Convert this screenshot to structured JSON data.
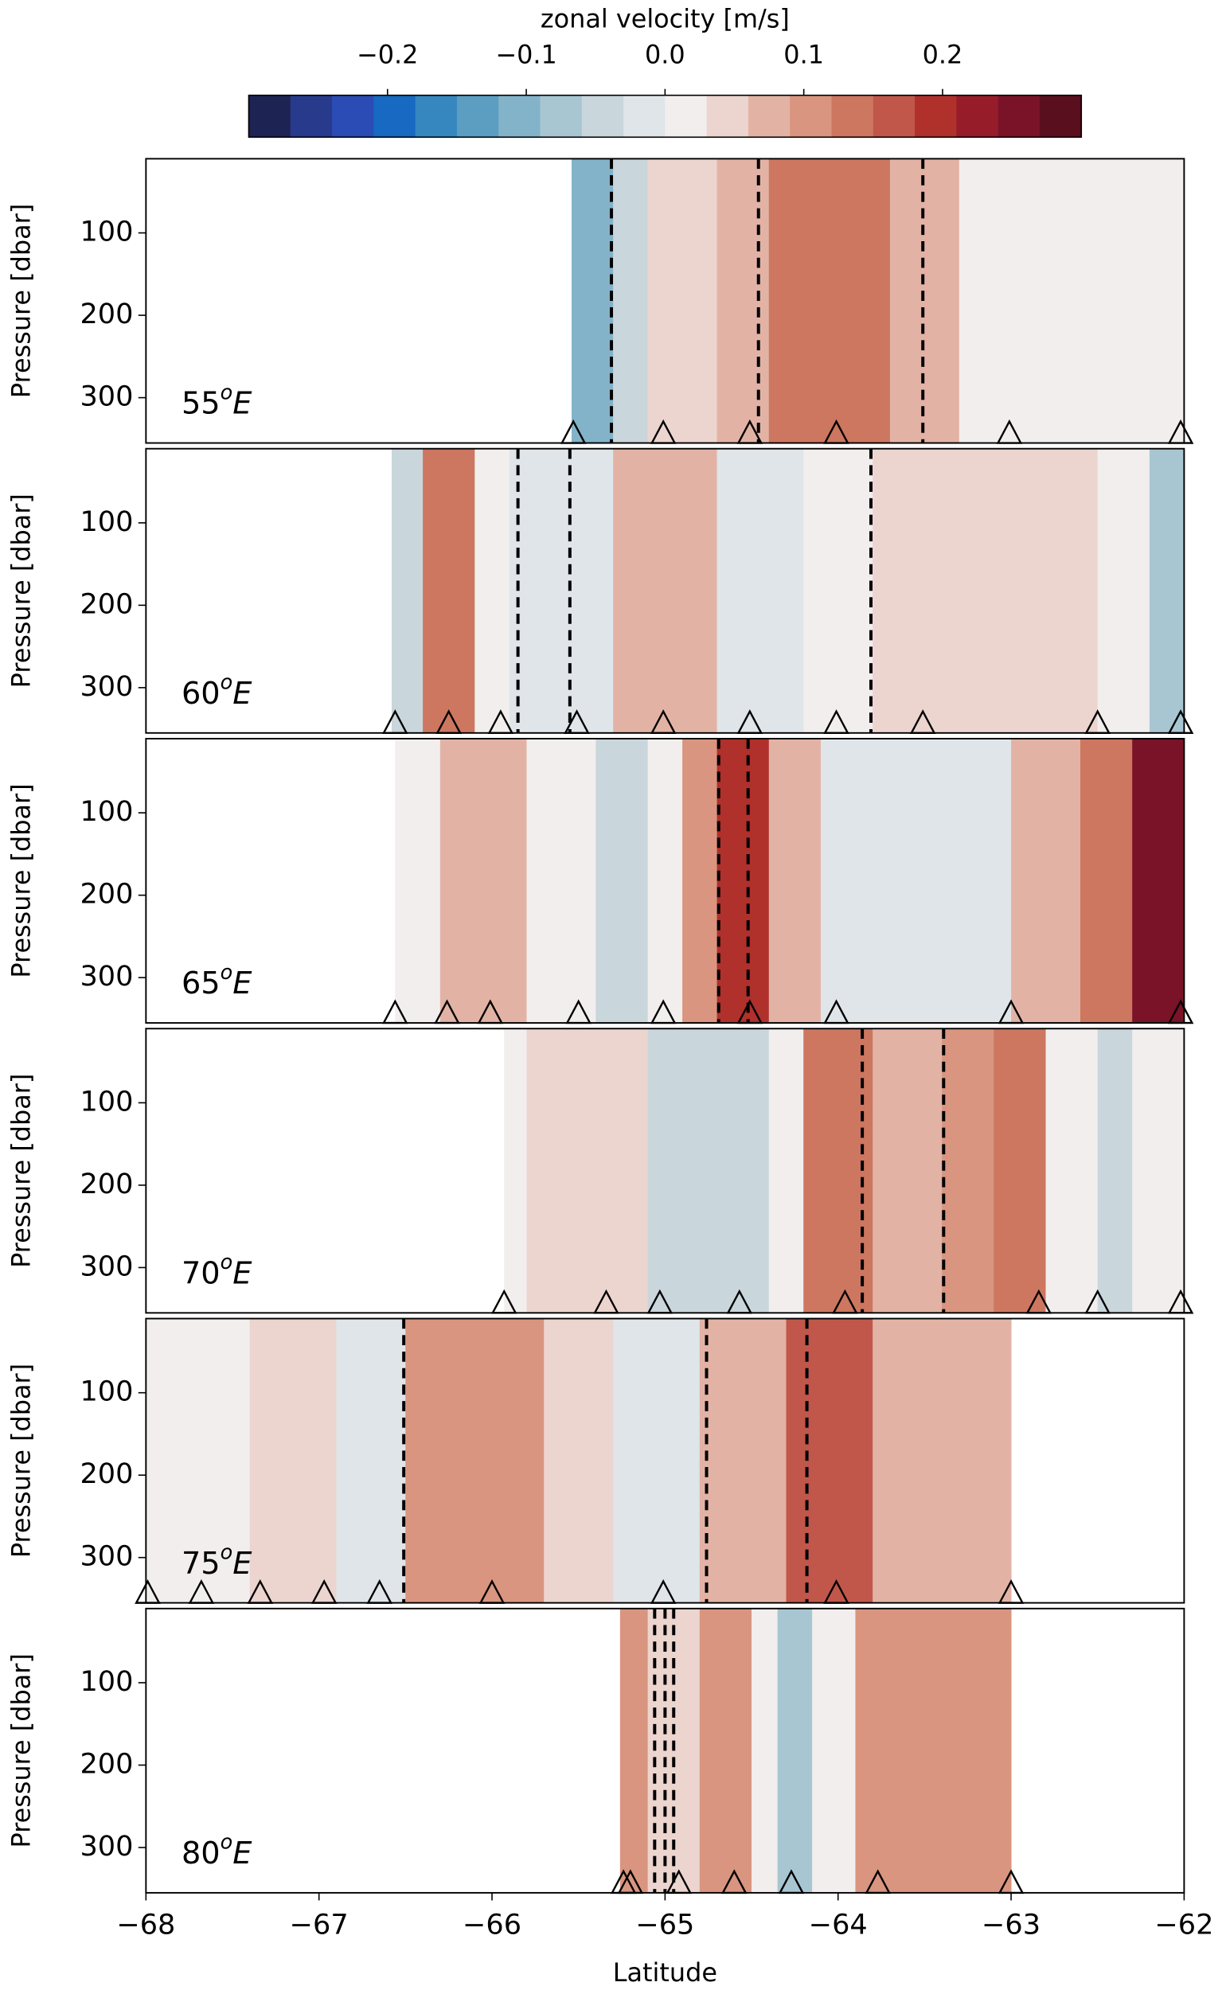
{
  "colorbar": {
    "label": "zonal velocity [m/s]",
    "clim": [
      -0.3,
      0.3
    ],
    "ticks": [
      {
        "value": -0.2,
        "label": "−0.2"
      },
      {
        "value": -0.1,
        "label": "−0.1"
      },
      {
        "value": 0.0,
        "label": "0.0"
      },
      0.1,
      0.2
    ],
    "colors": [
      "#1d2352",
      "#283a8c",
      "#2b4bb5",
      "#1769c1",
      "#3686c0",
      "#5b9ec2",
      "#83b3c9",
      "#a8c6d2",
      "#c9d6dc",
      "#dfe5e8",
      "#f2eeee",
      "#ecd5cf",
      "#e2b3a5",
      "#d9957f",
      "#cd7660",
      "#c0574a",
      "#b0302c",
      "#971c2a",
      "#7a1328",
      "#5a0f1f"
    ]
  },
  "chart_data": [
    {
      "type": "section",
      "label": {
        "base": "55",
        "sup": "o",
        "suffix": "E"
      },
      "ylabel": "Pressure [dbar]",
      "xlim": [
        -68,
        -62
      ],
      "ylim": [
        355,
        10
      ],
      "yticks": [
        100,
        200,
        300
      ],
      "lat_edges": [
        -65.54,
        -65.3,
        -65.1,
        -64.7,
        -64.4,
        -63.7,
        -63.3,
        -62
      ],
      "values": [
        -0.12,
        -0.04,
        0.04,
        0.08,
        0.12,
        0.06,
        0.01
      ],
      "stations": [
        -65.53,
        -65.01,
        -64.51,
        -64.01,
        -63.01,
        -62.02
      ],
      "dashed": [
        -65.31,
        -64.46,
        -63.51
      ]
    },
    {
      "type": "section",
      "label": {
        "base": "60",
        "sup": "o",
        "suffix": "E"
      },
      "ylabel": "Pressure [dbar]",
      "xlim": [
        -68,
        -62
      ],
      "ylim": [
        355,
        10
      ],
      "yticks": [
        100,
        200,
        300
      ],
      "lat_edges": [
        -66.58,
        -66.4,
        -66.1,
        -65.9,
        -65.3,
        -64.7,
        -64.2,
        -63.8,
        -62.5,
        -62.2,
        -62
      ],
      "values": [
        -0.05,
        0.12,
        0.03,
        -0.03,
        0.06,
        -0.02,
        0.03,
        0.05,
        0.02,
        -0.08
      ],
      "stations": [
        -66.56,
        -66.25,
        -65.95,
        -65.51,
        -65.01,
        -64.51,
        -64.01,
        -63.51,
        -62.5,
        -62.02
      ],
      "dashed": [
        -65.85,
        -65.55,
        -63.81
      ]
    },
    {
      "type": "section",
      "label": {
        "base": "65",
        "sup": "o",
        "suffix": "E"
      },
      "ylabel": "Pressure [dbar]",
      "xlim": [
        -68,
        -62
      ],
      "ylim": [
        355,
        10
      ],
      "yticks": [
        100,
        200,
        300
      ],
      "lat_edges": [
        -66.56,
        -66.3,
        -65.8,
        -65.4,
        -65.1,
        -64.9,
        -64.7,
        -64.4,
        -64.1,
        -63.0,
        -62.6,
        -62.3,
        -62
      ],
      "values": [
        0.01,
        0.06,
        0.02,
        -0.04,
        0.0,
        0.1,
        0.2,
        0.08,
        -0.02,
        0.06,
        0.14,
        0.24
      ],
      "stations": [
        -66.56,
        -66.26,
        -66.01,
        -65.5,
        -65.01,
        -64.51,
        -64.01,
        -63.0,
        -62.02
      ],
      "dashed": [
        -64.69,
        -64.52
      ]
    },
    {
      "type": "section",
      "label": {
        "base": "70",
        "sup": "o",
        "suffix": "E"
      },
      "ylabel": "Pressure [dbar]",
      "xlim": [
        -68,
        -62
      ],
      "ylim": [
        355,
        10
      ],
      "yticks": [
        100,
        200,
        300
      ],
      "lat_edges": [
        -65.93,
        -65.8,
        -65.1,
        -64.4,
        -64.2,
        -63.8,
        -63.4,
        -63.1,
        -62.8,
        -62.5,
        -62.3,
        -62
      ],
      "values": [
        0.01,
        0.05,
        -0.04,
        0.03,
        0.12,
        0.06,
        0.1,
        0.12,
        0.02,
        -0.05,
        0.02
      ],
      "stations": [
        -65.93,
        -65.34,
        -65.03,
        -64.57,
        -63.96,
        -62.84,
        -62.5,
        -62.02
      ],
      "dashed": [
        -63.86,
        -63.39
      ]
    },
    {
      "type": "section",
      "label": {
        "base": "75",
        "sup": "o",
        "suffix": "E"
      },
      "ylabel": "Pressure [dbar]",
      "xlim": [
        -68,
        -62
      ],
      "ylim": [
        355,
        10
      ],
      "yticks": [
        100,
        200,
        300
      ],
      "lat_edges": [
        -68,
        -67.4,
        -66.9,
        -66.5,
        -65.7,
        -65.3,
        -64.8,
        -64.3,
        -63.8,
        -63.0
      ],
      "values": [
        0.01,
        0.04,
        -0.03,
        0.09,
        0.05,
        -0.03,
        0.08,
        0.15,
        0.07
      ],
      "stations": [
        -67.99,
        -67.68,
        -67.34,
        -66.97,
        -66.65,
        -66.0,
        -65.01,
        -64.01,
        -63.0
      ],
      "dashed": [
        -66.51,
        -64.76,
        -64.18
      ]
    },
    {
      "type": "section",
      "label": {
        "base": "80",
        "sup": "o",
        "suffix": "E"
      },
      "ylabel": "Pressure [dbar]",
      "xlim": [
        -68,
        -62
      ],
      "ylim": [
        355,
        10
      ],
      "yticks": [
        100,
        200,
        300
      ],
      "xticks": [
        {
          "value": -68,
          "label": "−68"
        },
        {
          "value": -67,
          "label": "−67"
        },
        {
          "value": -66,
          "label": "−66"
        },
        {
          "value": -65,
          "label": "−65"
        },
        {
          "value": -64,
          "label": "−64"
        },
        {
          "value": -63,
          "label": "−63"
        },
        {
          "value": -62,
          "label": "−62"
        }
      ],
      "xlabel": "Latitude",
      "lat_edges": [
        -65.26,
        -65.1,
        -64.8,
        -64.5,
        -64.35,
        -64.15,
        -63.9,
        -63.0
      ],
      "values": [
        0.1,
        0.05,
        0.1,
        0.0,
        -0.08,
        0.0,
        0.1
      ],
      "stations": [
        -65.24,
        -65.2,
        -64.92,
        -64.6,
        -64.27,
        -63.77,
        -63.0
      ],
      "dashed": [
        -65.06,
        -65.0,
        -64.95
      ]
    }
  ]
}
